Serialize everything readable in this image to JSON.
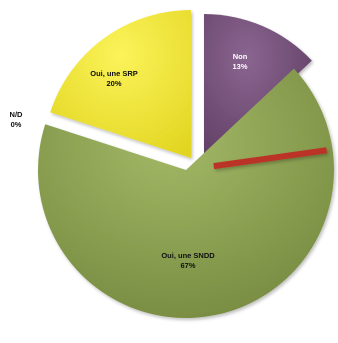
{
  "chart_data": {
    "type": "pie",
    "exploded": true,
    "slices": [
      {
        "label": "Non",
        "value": 13,
        "value_label": "13%",
        "color": "#77527b",
        "label_color": "#ffffff"
      },
      {
        "label": "Oui, une SNDD",
        "value": 67,
        "value_label": "67%",
        "color": "#8fa551",
        "label_color": "#111111"
      },
      {
        "label": "N/D",
        "value": 0,
        "value_label": "0%",
        "color": "#bb3226",
        "label_color": "#111111"
      },
      {
        "label": "Oui, une SRP",
        "value": 20,
        "value_label": "20%",
        "color": "#f2e93a",
        "label_color": "#111111"
      }
    ]
  }
}
